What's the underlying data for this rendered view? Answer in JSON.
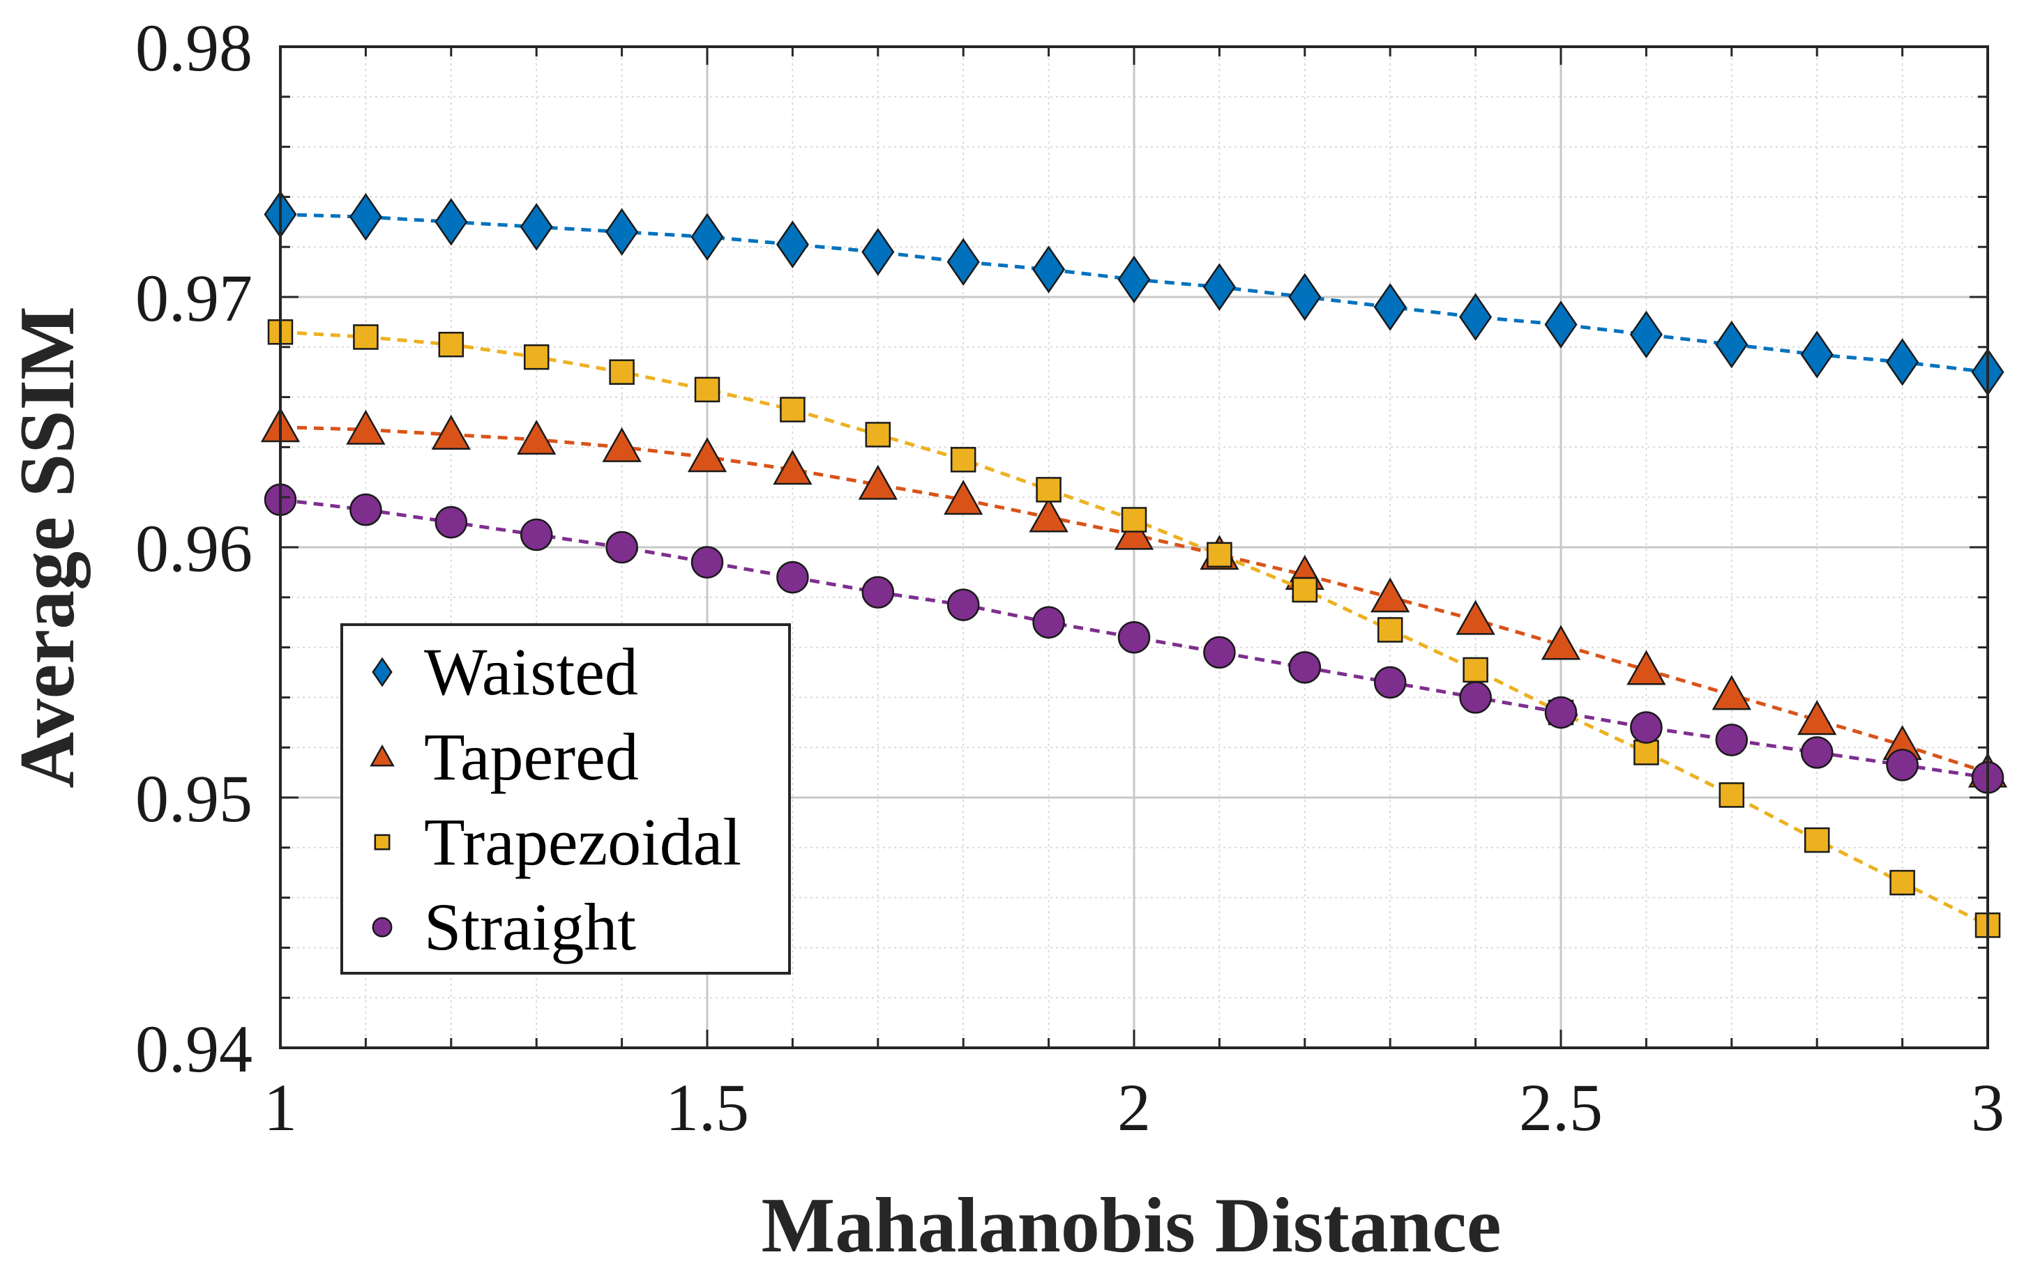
{
  "chart_data": {
    "type": "line",
    "title": "",
    "xlabel": "Mahalanobis Distance",
    "ylabel": "Average SSIM",
    "xlim": [
      1,
      3
    ],
    "ylim": [
      0.94,
      0.98
    ],
    "x_ticks": [
      "1",
      "1.5",
      "2",
      "2.5",
      "3"
    ],
    "y_ticks": [
      "0.94",
      "0.95",
      "0.96",
      "0.97",
      "0.98"
    ],
    "grid": true,
    "minor_grid": true,
    "legend_position": "lower-left",
    "x": [
      1.0,
      1.1,
      1.2,
      1.3,
      1.4,
      1.5,
      1.6,
      1.7,
      1.8,
      1.9,
      2.0,
      2.1,
      2.2,
      2.3,
      2.4,
      2.5,
      2.6,
      2.7,
      2.8,
      2.9,
      3.0
    ],
    "series": [
      {
        "name": "Waisted",
        "marker": "diamond",
        "color": "#0072BD",
        "values": [
          0.9733,
          0.9732,
          0.973,
          0.9728,
          0.9726,
          0.9724,
          0.9721,
          0.9718,
          0.9714,
          0.9711,
          0.9707,
          0.9704,
          0.97,
          0.9696,
          0.9692,
          0.9689,
          0.9685,
          0.9681,
          0.9677,
          0.9674,
          0.967
        ]
      },
      {
        "name": "Tapered",
        "marker": "triangle",
        "color": "#D95319",
        "values": [
          0.9648,
          0.9647,
          0.9645,
          0.9643,
          0.964,
          0.9636,
          0.9631,
          0.9625,
          0.9619,
          0.9612,
          0.9605,
          0.9597,
          0.9589,
          0.958,
          0.9571,
          0.9561,
          0.9551,
          0.9541,
          0.9531,
          0.9521,
          0.951
        ]
      },
      {
        "name": "Trapezoidal",
        "marker": "square",
        "color": "#EDB120",
        "values": [
          0.9686,
          0.9684,
          0.9681,
          0.9676,
          0.967,
          0.9663,
          0.9655,
          0.9645,
          0.9635,
          0.9623,
          0.9611,
          0.9597,
          0.9583,
          0.9567,
          0.9551,
          0.9534,
          0.9518,
          0.9501,
          0.9483,
          0.9466,
          0.9449
        ]
      },
      {
        "name": "Straight",
        "marker": "circle",
        "color": "#7E2F8E",
        "values": [
          0.9619,
          0.9615,
          0.961,
          0.9605,
          0.96,
          0.9594,
          0.9588,
          0.9582,
          0.9577,
          0.957,
          0.9564,
          0.9558,
          0.9552,
          0.9546,
          0.954,
          0.9534,
          0.9528,
          0.9523,
          0.9518,
          0.9513,
          0.9508
        ]
      }
    ]
  }
}
